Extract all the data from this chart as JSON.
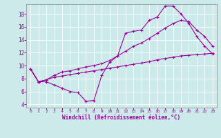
{
  "xlabel": "Windchill (Refroidissement éolien,°C)",
  "bg_color": "#cceaea",
  "line_color": "#990099",
  "xlim": [
    -0.5,
    23.5
  ],
  "ylim": [
    3.5,
    19.5
  ],
  "xticks": [
    0,
    1,
    2,
    3,
    4,
    5,
    6,
    7,
    8,
    9,
    10,
    11,
    12,
    13,
    14,
    15,
    16,
    17,
    18,
    19,
    20,
    21,
    22,
    23
  ],
  "yticks": [
    4,
    6,
    8,
    10,
    12,
    14,
    16,
    18
  ],
  "line1_x": [
    0,
    1,
    2,
    3,
    4,
    5,
    6,
    7,
    8,
    9,
    10,
    11,
    12,
    13,
    14,
    15,
    16,
    17,
    18,
    19,
    20,
    21,
    22,
    23
  ],
  "line1_y": [
    9.5,
    7.5,
    7.5,
    7.0,
    6.5,
    6.0,
    5.8,
    4.5,
    4.6,
    8.5,
    10.5,
    11.5,
    15.0,
    15.3,
    15.5,
    17.0,
    17.5,
    19.2,
    19.2,
    18.0,
    16.5,
    14.5,
    13.0,
    11.8
  ],
  "line2_x": [
    0,
    1,
    2,
    3,
    4,
    5,
    6,
    7,
    8,
    9,
    10,
    11,
    12,
    13,
    14,
    15,
    16,
    17,
    18,
    19,
    20,
    21,
    22,
    23
  ],
  "line2_y": [
    9.5,
    7.5,
    7.8,
    8.2,
    8.4,
    8.6,
    8.8,
    9.0,
    9.2,
    9.4,
    9.6,
    9.8,
    10.0,
    10.2,
    10.4,
    10.6,
    10.9,
    11.1,
    11.3,
    11.5,
    11.6,
    11.7,
    11.8,
    11.9
  ],
  "line3_x": [
    0,
    1,
    2,
    3,
    4,
    5,
    6,
    7,
    8,
    9,
    10,
    11,
    12,
    13,
    14,
    15,
    16,
    17,
    18,
    19,
    20,
    21,
    22,
    23
  ],
  "line3_y": [
    9.5,
    7.5,
    7.8,
    8.5,
    9.0,
    9.2,
    9.5,
    9.8,
    10.0,
    10.3,
    10.8,
    11.5,
    12.2,
    13.0,
    13.5,
    14.2,
    15.0,
    15.8,
    16.5,
    17.0,
    16.8,
    15.5,
    14.5,
    13.0
  ]
}
